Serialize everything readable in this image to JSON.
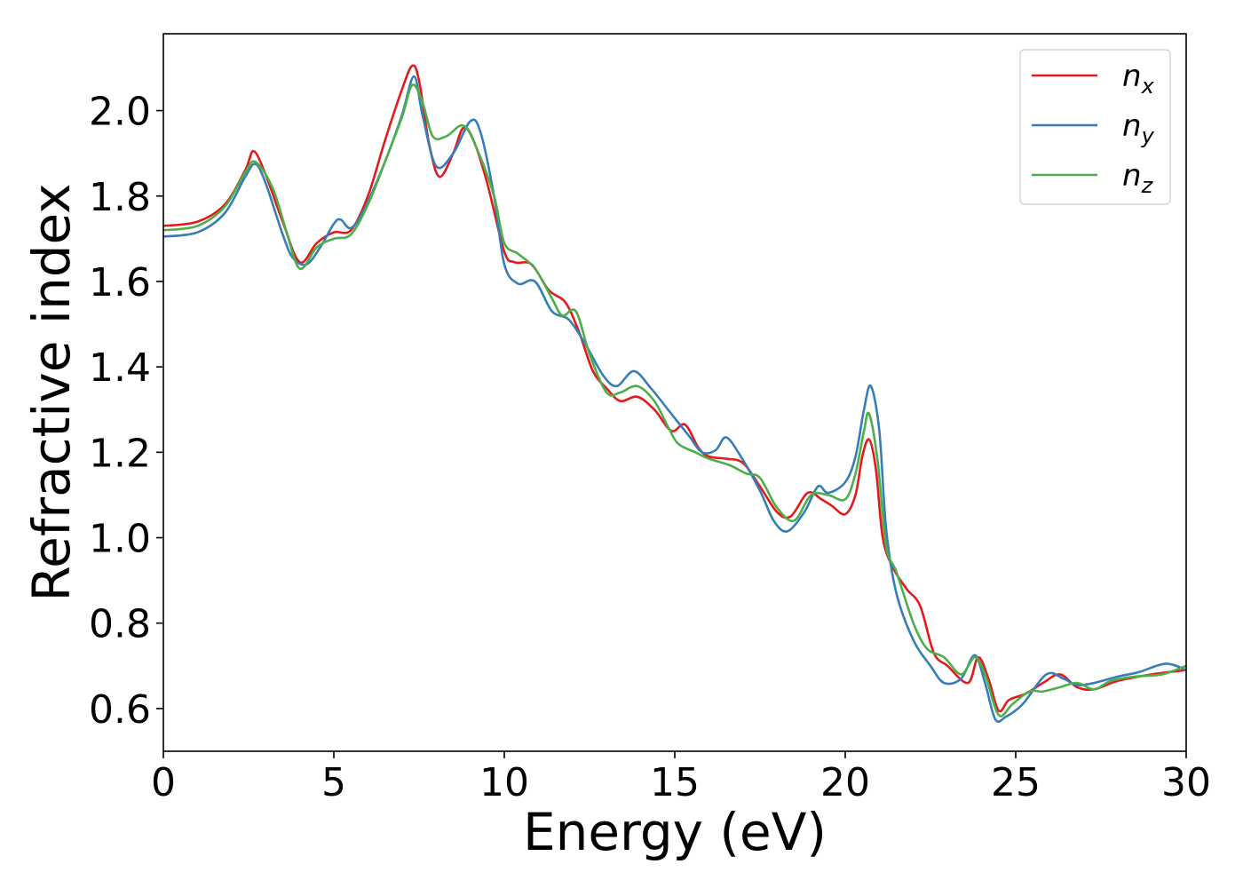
{
  "chart_data": {
    "type": "line",
    "title": "",
    "xlabel": "Energy (eV)",
    "ylabel": "Refractive index",
    "xlim": [
      0,
      30
    ],
    "ylim": [
      0.5,
      2.18
    ],
    "xticks": [
      {
        "value": 0,
        "label": "0"
      },
      {
        "value": 5,
        "label": "5"
      },
      {
        "value": 10,
        "label": "10"
      },
      {
        "value": 15,
        "label": "15"
      },
      {
        "value": 20,
        "label": "20"
      },
      {
        "value": 25,
        "label": "25"
      },
      {
        "value": 30,
        "label": "30"
      }
    ],
    "yticks": [
      {
        "value": 0.6,
        "label": "0.6"
      },
      {
        "value": 0.8,
        "label": "0.8"
      },
      {
        "value": 1.0,
        "label": "1.0"
      },
      {
        "value": 1.2,
        "label": "1.2"
      },
      {
        "value": 1.4,
        "label": "1.4"
      },
      {
        "value": 1.6,
        "label": "1.6"
      },
      {
        "value": 1.8,
        "label": "1.8"
      },
      {
        "value": 2.0,
        "label": "2.0"
      }
    ],
    "grid": false,
    "legend": {
      "position": "top-right"
    },
    "series": [
      {
        "name": "n_x",
        "label_main": "n",
        "label_sub": "x",
        "color": "#e41a1c",
        "points": [
          [
            0,
            1.73
          ],
          [
            1.0,
            1.74
          ],
          [
            1.8,
            1.78
          ],
          [
            2.4,
            1.86
          ],
          [
            2.65,
            1.905
          ],
          [
            3.0,
            1.85
          ],
          [
            3.5,
            1.74
          ],
          [
            4.0,
            1.645
          ],
          [
            4.5,
            1.69
          ],
          [
            5.0,
            1.715
          ],
          [
            5.5,
            1.72
          ],
          [
            6.0,
            1.8
          ],
          [
            6.5,
            1.93
          ],
          [
            7.0,
            2.05
          ],
          [
            7.3,
            2.105
          ],
          [
            7.5,
            2.07
          ],
          [
            7.8,
            1.92
          ],
          [
            8.1,
            1.845
          ],
          [
            8.5,
            1.9
          ],
          [
            8.8,
            1.96
          ],
          [
            9.1,
            1.93
          ],
          [
            9.5,
            1.83
          ],
          [
            10.0,
            1.67
          ],
          [
            10.3,
            1.645
          ],
          [
            10.8,
            1.64
          ],
          [
            11.3,
            1.58
          ],
          [
            11.8,
            1.55
          ],
          [
            12.2,
            1.48
          ],
          [
            12.6,
            1.39
          ],
          [
            13.0,
            1.35
          ],
          [
            13.4,
            1.32
          ],
          [
            13.9,
            1.33
          ],
          [
            14.4,
            1.3
          ],
          [
            14.9,
            1.25
          ],
          [
            15.3,
            1.265
          ],
          [
            15.7,
            1.21
          ],
          [
            16.0,
            1.19
          ],
          [
            16.5,
            1.185
          ],
          [
            17.0,
            1.175
          ],
          [
            17.5,
            1.12
          ],
          [
            18.0,
            1.06
          ],
          [
            18.4,
            1.05
          ],
          [
            18.9,
            1.105
          ],
          [
            19.3,
            1.09
          ],
          [
            19.6,
            1.075
          ],
          [
            20.0,
            1.055
          ],
          [
            20.3,
            1.1
          ],
          [
            20.5,
            1.19
          ],
          [
            20.7,
            1.23
          ],
          [
            20.9,
            1.16
          ],
          [
            21.1,
            1.0
          ],
          [
            21.4,
            0.93
          ],
          [
            21.8,
            0.88
          ],
          [
            22.2,
            0.84
          ],
          [
            22.6,
            0.73
          ],
          [
            23.0,
            0.7
          ],
          [
            23.6,
            0.66
          ],
          [
            23.9,
            0.72
          ],
          [
            24.2,
            0.67
          ],
          [
            24.5,
            0.595
          ],
          [
            24.8,
            0.62
          ],
          [
            25.3,
            0.635
          ],
          [
            25.8,
            0.66
          ],
          [
            26.3,
            0.68
          ],
          [
            26.8,
            0.65
          ],
          [
            27.3,
            0.645
          ],
          [
            28.0,
            0.665
          ],
          [
            29.0,
            0.68
          ],
          [
            30.0,
            0.69
          ]
        ]
      },
      {
        "name": "n_y",
        "label_main": "n",
        "label_sub": "y",
        "color": "#377eb8",
        "points": [
          [
            0,
            1.705
          ],
          [
            1.0,
            1.715
          ],
          [
            1.8,
            1.76
          ],
          [
            2.4,
            1.845
          ],
          [
            2.7,
            1.875
          ],
          [
            3.0,
            1.83
          ],
          [
            3.5,
            1.71
          ],
          [
            3.8,
            1.655
          ],
          [
            4.2,
            1.64
          ],
          [
            4.6,
            1.68
          ],
          [
            5.0,
            1.735
          ],
          [
            5.2,
            1.745
          ],
          [
            5.5,
            1.725
          ],
          [
            5.9,
            1.77
          ],
          [
            6.5,
            1.88
          ],
          [
            7.0,
            1.99
          ],
          [
            7.35,
            2.08
          ],
          [
            7.6,
            1.99
          ],
          [
            8.0,
            1.87
          ],
          [
            8.5,
            1.9
          ],
          [
            9.0,
            1.975
          ],
          [
            9.3,
            1.95
          ],
          [
            9.7,
            1.8
          ],
          [
            10.0,
            1.64
          ],
          [
            10.4,
            1.595
          ],
          [
            10.9,
            1.6
          ],
          [
            11.4,
            1.53
          ],
          [
            11.9,
            1.51
          ],
          [
            12.4,
            1.45
          ],
          [
            12.9,
            1.38
          ],
          [
            13.3,
            1.355
          ],
          [
            13.8,
            1.39
          ],
          [
            14.3,
            1.35
          ],
          [
            14.9,
            1.29
          ],
          [
            15.4,
            1.24
          ],
          [
            15.8,
            1.2
          ],
          [
            16.2,
            1.205
          ],
          [
            16.5,
            1.235
          ],
          [
            16.9,
            1.195
          ],
          [
            17.5,
            1.11
          ],
          [
            17.9,
            1.04
          ],
          [
            18.3,
            1.015
          ],
          [
            18.8,
            1.06
          ],
          [
            19.2,
            1.12
          ],
          [
            19.5,
            1.105
          ],
          [
            20.0,
            1.13
          ],
          [
            20.3,
            1.19
          ],
          [
            20.55,
            1.3
          ],
          [
            20.75,
            1.355
          ],
          [
            21.0,
            1.25
          ],
          [
            21.2,
            1.02
          ],
          [
            21.5,
            0.87
          ],
          [
            22.0,
            0.76
          ],
          [
            22.5,
            0.7
          ],
          [
            22.9,
            0.66
          ],
          [
            23.4,
            0.67
          ],
          [
            23.8,
            0.725
          ],
          [
            24.1,
            0.66
          ],
          [
            24.4,
            0.575
          ],
          [
            24.7,
            0.58
          ],
          [
            25.2,
            0.61
          ],
          [
            25.9,
            0.68
          ],
          [
            26.4,
            0.67
          ],
          [
            26.8,
            0.655
          ],
          [
            27.3,
            0.66
          ],
          [
            28.0,
            0.675
          ],
          [
            28.6,
            0.685
          ],
          [
            29.4,
            0.705
          ],
          [
            30.0,
            0.69
          ]
        ]
      },
      {
        "name": "n_z",
        "label_main": "n",
        "label_sub": "z",
        "color": "#4daf4a",
        "points": [
          [
            0,
            1.72
          ],
          [
            1.0,
            1.73
          ],
          [
            1.8,
            1.775
          ],
          [
            2.4,
            1.855
          ],
          [
            2.7,
            1.88
          ],
          [
            3.2,
            1.82
          ],
          [
            3.6,
            1.72
          ],
          [
            4.0,
            1.63
          ],
          [
            4.5,
            1.68
          ],
          [
            5.0,
            1.7
          ],
          [
            5.5,
            1.71
          ],
          [
            6.0,
            1.78
          ],
          [
            6.5,
            1.88
          ],
          [
            7.0,
            1.985
          ],
          [
            7.3,
            2.06
          ],
          [
            7.6,
            2.02
          ],
          [
            7.9,
            1.94
          ],
          [
            8.3,
            1.94
          ],
          [
            8.8,
            1.965
          ],
          [
            9.2,
            1.91
          ],
          [
            9.7,
            1.8
          ],
          [
            10.0,
            1.69
          ],
          [
            10.4,
            1.665
          ],
          [
            10.9,
            1.63
          ],
          [
            11.4,
            1.56
          ],
          [
            11.7,
            1.52
          ],
          [
            12.1,
            1.53
          ],
          [
            12.5,
            1.43
          ],
          [
            13.0,
            1.34
          ],
          [
            13.4,
            1.34
          ],
          [
            13.9,
            1.355
          ],
          [
            14.4,
            1.32
          ],
          [
            14.8,
            1.26
          ],
          [
            15.1,
            1.22
          ],
          [
            15.6,
            1.2
          ],
          [
            16.0,
            1.185
          ],
          [
            16.6,
            1.17
          ],
          [
            17.1,
            1.15
          ],
          [
            17.5,
            1.14
          ],
          [
            18.0,
            1.07
          ],
          [
            18.5,
            1.04
          ],
          [
            19.0,
            1.1
          ],
          [
            19.5,
            1.1
          ],
          [
            20.0,
            1.09
          ],
          [
            20.3,
            1.15
          ],
          [
            20.55,
            1.25
          ],
          [
            20.7,
            1.29
          ],
          [
            20.95,
            1.18
          ],
          [
            21.2,
            0.98
          ],
          [
            21.5,
            0.92
          ],
          [
            22.0,
            0.8
          ],
          [
            22.4,
            0.74
          ],
          [
            22.9,
            0.72
          ],
          [
            23.4,
            0.68
          ],
          [
            23.8,
            0.72
          ],
          [
            24.1,
            0.68
          ],
          [
            24.5,
            0.585
          ],
          [
            24.9,
            0.61
          ],
          [
            25.4,
            0.64
          ],
          [
            25.8,
            0.64
          ],
          [
            26.3,
            0.65
          ],
          [
            26.8,
            0.66
          ],
          [
            27.3,
            0.645
          ],
          [
            27.8,
            0.665
          ],
          [
            28.5,
            0.675
          ],
          [
            29.3,
            0.68
          ],
          [
            30.0,
            0.7
          ]
        ]
      }
    ]
  }
}
